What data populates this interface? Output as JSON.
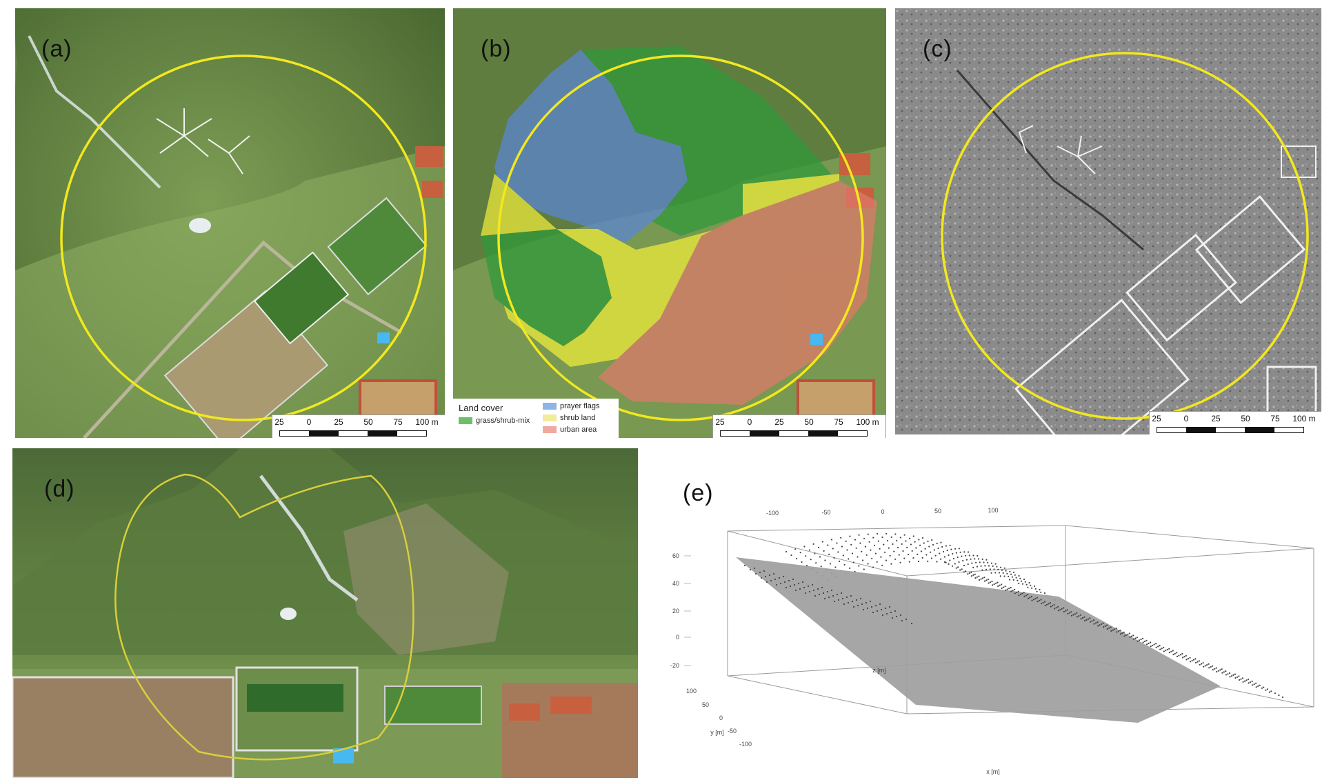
{
  "panels": {
    "a": {
      "label": "(a)"
    },
    "b": {
      "label": "(b)"
    },
    "c": {
      "label": "(c)"
    },
    "d": {
      "label": "(d)"
    },
    "e": {
      "label": "(e)"
    }
  },
  "scalebar": {
    "ticks": [
      "25",
      "0",
      "25",
      "50",
      "75",
      "100 m"
    ]
  },
  "legend": {
    "title": "Land cover",
    "items": [
      {
        "label": "grass/shrub-mix",
        "color": "#6cc06a"
      },
      {
        "label": "prayer flags",
        "color": "#8fb4e6"
      },
      {
        "label": "shrub land",
        "color": "#f0ec9a"
      },
      {
        "label": "urban area",
        "color": "#f0a9a0"
      }
    ]
  },
  "colors": {
    "boundary": "#f2e81e",
    "grass_fill": "#2f9a3a",
    "flags_fill": "#5b86d6",
    "shrub_fill": "#f2ee3a",
    "urban_fill": "#e07a6a",
    "terrain": "#5e7d3f",
    "relief": "#8a8a8a",
    "plane": "#9e9e9e"
  },
  "plot3d": {
    "x_ticks": [
      "-100",
      "-50",
      "0",
      "50",
      "100"
    ],
    "z_ticks": [
      "60",
      "40",
      "20",
      "0",
      "-20"
    ],
    "y_ticks": [
      "100",
      "50",
      "0",
      "-50",
      "-100"
    ],
    "x_label": "x [m]",
    "y_label": "y [m]",
    "inner_label": "z [m]"
  }
}
